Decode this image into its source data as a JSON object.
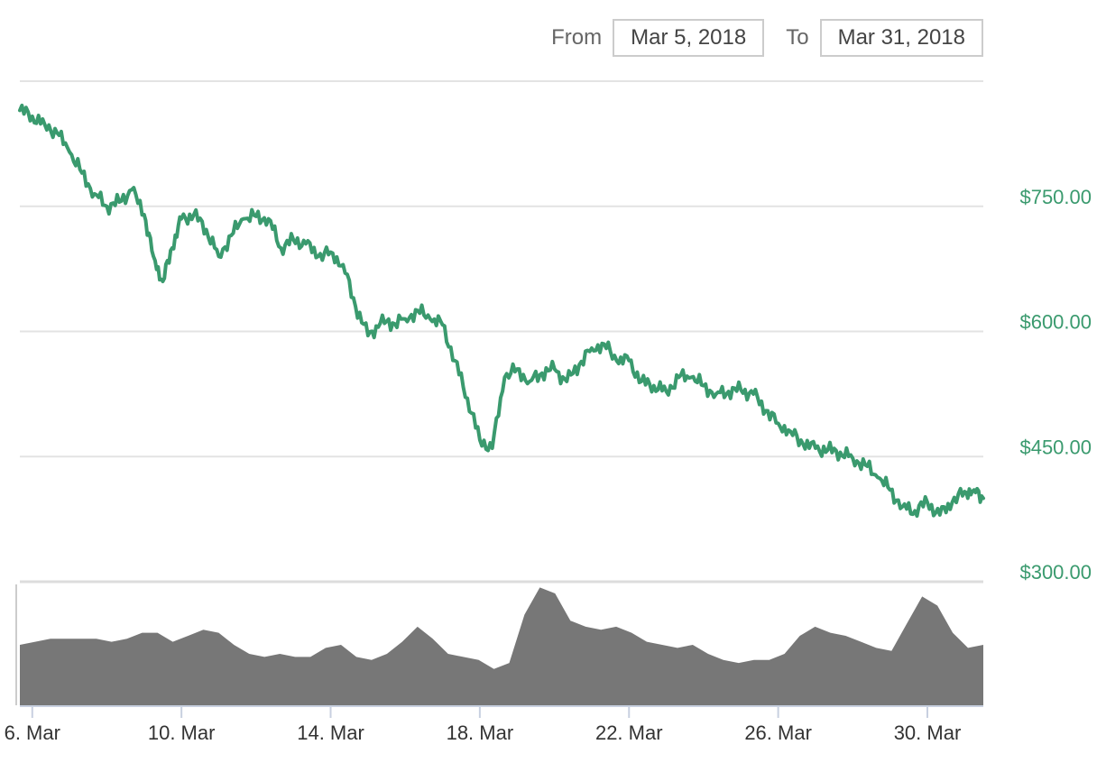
{
  "range_selector": {
    "from_label": "From",
    "from_value": "Mar 5, 2018",
    "to_label": "To",
    "to_value": "Mar 31, 2018"
  },
  "colors": {
    "line": "#3a9a6e",
    "volume": "#777777",
    "grid": "#e3e3e3",
    "axis_label": "#3a9a6e"
  },
  "chart_data": {
    "type": "line",
    "title": "",
    "xlabel": "",
    "ylabel": "",
    "x_range": [
      "2018-03-05T16:00",
      "2018-03-31T12:00"
    ],
    "ylim": [
      300,
      900
    ],
    "y_ticks": [
      300,
      450,
      600,
      750
    ],
    "y_tick_labels": [
      "$300.00",
      "$450.00",
      "$600.00",
      "$750.00"
    ],
    "x_ticks": [
      "2018-03-06",
      "2018-03-10",
      "2018-03-14",
      "2018-03-18",
      "2018-03-22",
      "2018-03-26",
      "2018-03-30"
    ],
    "x_tick_labels": [
      "6. Mar",
      "10. Mar",
      "14. Mar",
      "18. Mar",
      "22. Mar",
      "26. Mar",
      "30. Mar"
    ],
    "grid": true,
    "series": [
      {
        "x": [
          "2018-03-05T16:00",
          "2018-03-06T00:00",
          "2018-03-06T08:00",
          "2018-03-06T16:00",
          "2018-03-07T00:00",
          "2018-03-07T08:00",
          "2018-03-07T16:00",
          "2018-03-08T00:00",
          "2018-03-08T08:00",
          "2018-03-08T16:00",
          "2018-03-09T00:00",
          "2018-03-09T06:00",
          "2018-03-09T12:00",
          "2018-03-09T18:00",
          "2018-03-10T00:00",
          "2018-03-10T08:00",
          "2018-03-10T16:00",
          "2018-03-11T00:00",
          "2018-03-11T08:00",
          "2018-03-11T16:00",
          "2018-03-12T00:00",
          "2018-03-12T08:00",
          "2018-03-12T16:00",
          "2018-03-13T00:00",
          "2018-03-13T08:00",
          "2018-03-13T16:00",
          "2018-03-14T00:00",
          "2018-03-14T08:00",
          "2018-03-14T16:00",
          "2018-03-15T00:00",
          "2018-03-15T08:00",
          "2018-03-15T16:00",
          "2018-03-16T00:00",
          "2018-03-16T08:00",
          "2018-03-16T16:00",
          "2018-03-17T00:00",
          "2018-03-17T08:00",
          "2018-03-17T16:00",
          "2018-03-18T00:00",
          "2018-03-18T08:00",
          "2018-03-18T16:00",
          "2018-03-19T00:00",
          "2018-03-19T08:00",
          "2018-03-19T16:00",
          "2018-03-20T00:00",
          "2018-03-20T08:00",
          "2018-03-20T16:00",
          "2018-03-21T00:00",
          "2018-03-21T08:00",
          "2018-03-21T16:00",
          "2018-03-22T00:00",
          "2018-03-22T08:00",
          "2018-03-22T16:00",
          "2018-03-23T00:00",
          "2018-03-23T08:00",
          "2018-03-23T16:00",
          "2018-03-24T00:00",
          "2018-03-24T08:00",
          "2018-03-24T16:00",
          "2018-03-25T00:00",
          "2018-03-25T08:00",
          "2018-03-25T16:00",
          "2018-03-26T00:00",
          "2018-03-26T08:00",
          "2018-03-26T16:00",
          "2018-03-27T00:00",
          "2018-03-27T08:00",
          "2018-03-27T16:00",
          "2018-03-28T00:00",
          "2018-03-28T08:00",
          "2018-03-28T16:00",
          "2018-03-29T00:00",
          "2018-03-29T08:00",
          "2018-03-29T16:00",
          "2018-03-30T00:00",
          "2018-03-30T08:00",
          "2018-03-30T16:00",
          "2018-03-31T00:00",
          "2018-03-31T06:00",
          "2018-03-31T12:00"
        ],
        "values": [
          865,
          858,
          848,
          838,
          815,
          790,
          765,
          750,
          755,
          770,
          740,
          690,
          660,
          700,
          735,
          740,
          722,
          690,
          715,
          735,
          738,
          735,
          700,
          710,
          705,
          690,
          695,
          680,
          630,
          595,
          610,
          610,
          615,
          625,
          615,
          608,
          565,
          520,
          470,
          460,
          545,
          555,
          540,
          550,
          555,
          540,
          560,
          580,
          585,
          565,
          565,
          540,
          535,
          528,
          545,
          545,
          535,
          525,
          528,
          530,
          525,
          505,
          490,
          480,
          465,
          460,
          458,
          455,
          448,
          440,
          425,
          410,
          390,
          385,
          395,
          380,
          395,
          408,
          410,
          400
        ]
      }
    ],
    "volume": [
      20,
      21,
      22,
      22,
      22,
      22,
      21,
      22,
      24,
      24,
      21,
      23,
      25,
      24,
      20,
      17,
      16,
      17,
      16,
      16,
      19,
      20,
      16,
      15,
      17,
      21,
      26,
      22,
      17,
      16,
      15,
      12,
      14,
      30,
      39,
      37,
      28,
      26,
      25,
      26,
      24,
      21,
      20,
      19,
      20,
      17,
      15,
      14,
      15,
      15,
      17,
      23,
      26,
      24,
      23,
      21,
      19,
      18,
      27,
      36,
      33,
      24,
      19,
      20
    ]
  }
}
